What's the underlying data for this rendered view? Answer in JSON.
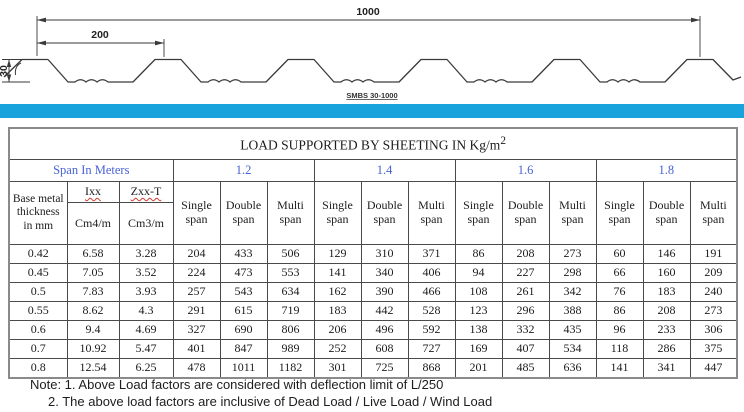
{
  "colors": {
    "accent_bar": "#18a3dc",
    "table_header_blue": "#4862d8",
    "spellcheck_red": "#d23b2e"
  },
  "drawing": {
    "dim_overall_width": "1000",
    "dim_rib_pitch": "200",
    "dim_profile_height": "30",
    "profile_label": "SMBS 30-1000"
  },
  "table": {
    "title": "LOAD SUPPORTED BY SHEETING IN Kg/m",
    "title_superscript": "2",
    "span_group_label": "Span In Meters",
    "span_values": [
      "1.2",
      "1.4",
      "1.6",
      "1.8"
    ],
    "base_metal_header": "Base metal thickness in mm",
    "ixx_label": "Ixx",
    "ixx_unit": "Cm4/m",
    "zxx_label": "Zxx-T",
    "zxx_unit": "Cm3/m",
    "span_col_headers": [
      "Single span",
      "Double span",
      "Multi span"
    ],
    "rows": [
      {
        "thickness": "0.42",
        "ixx": "6.58",
        "zxx": "3.28",
        "values": [
          "204",
          "433",
          "506",
          "129",
          "310",
          "371",
          "86",
          "208",
          "273",
          "60",
          "146",
          "191"
        ]
      },
      {
        "thickness": "0.45",
        "ixx": "7.05",
        "zxx": "3.52",
        "values": [
          "224",
          "473",
          "553",
          "141",
          "340",
          "406",
          "94",
          "227",
          "298",
          "66",
          "160",
          "209"
        ]
      },
      {
        "thickness": "0.5",
        "ixx": "7.83",
        "zxx": "3.93",
        "values": [
          "257",
          "543",
          "634",
          "162",
          "390",
          "466",
          "108",
          "261",
          "342",
          "76",
          "183",
          "240"
        ]
      },
      {
        "thickness": "0.55",
        "ixx": "8.62",
        "zxx": "4.3",
        "values": [
          "291",
          "615",
          "719",
          "183",
          "442",
          "528",
          "123",
          "296",
          "388",
          "86",
          "208",
          "273"
        ]
      },
      {
        "thickness": "0.6",
        "ixx": "9.4",
        "zxx": "4.69",
        "values": [
          "327",
          "690",
          "806",
          "206",
          "496",
          "592",
          "138",
          "332",
          "435",
          "96",
          "233",
          "306"
        ]
      },
      {
        "thickness": "0.7",
        "ixx": "10.92",
        "zxx": "5.47",
        "values": [
          "401",
          "847",
          "989",
          "252",
          "608",
          "727",
          "169",
          "407",
          "534",
          "118",
          "286",
          "375"
        ]
      },
      {
        "thickness": "0.8",
        "ixx": "12.54",
        "zxx": "6.25",
        "values": [
          "478",
          "1011",
          "1182",
          "301",
          "725",
          "868",
          "201",
          "485",
          "636",
          "141",
          "341",
          "447"
        ]
      }
    ]
  },
  "notes": {
    "line1": "Note: 1. Above Load factors are considered with deflection limit of L/250",
    "line2": "2. The above load factors are inclusive of Dead Load / Live Load / Wind Load"
  }
}
